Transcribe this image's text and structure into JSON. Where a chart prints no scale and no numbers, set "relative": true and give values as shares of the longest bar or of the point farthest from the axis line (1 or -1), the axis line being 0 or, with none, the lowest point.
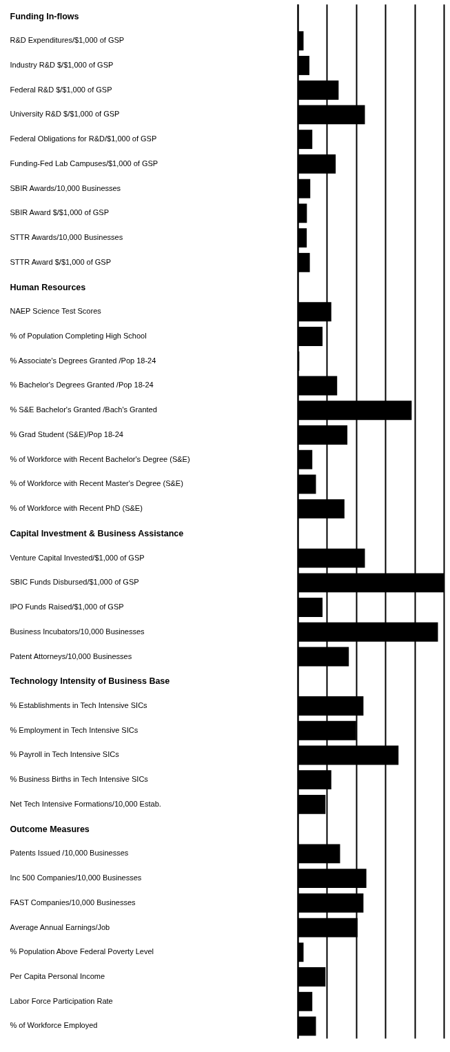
{
  "chart_data": {
    "type": "bar",
    "orientation": "horizontal",
    "relative": true,
    "grid": "x",
    "color": "#000000",
    "categories": [
      "Funding In-flows",
      "R&D Expenditures/$1,000 of GSP",
      "Industry R&D $/$1,000 of GSP",
      "Federal R&D $/$1,000 of GSP",
      "University R&D $/$1,000 of GSP",
      "Federal Obligations for R&D/$1,000 of GSP",
      "Funding-Fed Lab Campuses/$1,000 of GSP",
      "SBIR Awards/10,000 Businesses",
      "SBIR Award $/$1,000 of GSP",
      "STTR Awards/10,000 Businesses",
      "STTR Award $/$1,000 of GSP",
      "Human Resources",
      "NAEP Science Test Scores",
      "% of Population Completing High School",
      "% Associate's Degrees Granted /Pop 18-24",
      "% Bachelor's Degrees Granted /Pop 18-24",
      "% S&E Bachelor's Granted /Bach's Granted",
      "% Grad Student (S&E)/Pop 18-24",
      "% of Workforce with Recent Bachelor's Degree (S&E)",
      "% of Workforce with Recent Master's Degree (S&E)",
      "% of Workforce with Recent PhD (S&E)",
      "Capital Investment & Business Assistance",
      "Venture Capital Invested/$1,000 of GSP",
      "SBIC Funds Disbursed/$1,000 of GSP",
      "IPO Funds Raised/$1,000 of GSP",
      "Business Incubators/10,000 Businesses",
      "Patent Attorneys/10,000 Businesses",
      "Technology Intensity of Business Base",
      "% Establishments in Tech Intensive SICs",
      "% Employment in Tech Intensive SICs",
      "% Payroll in Tech Intensive SICs",
      "% Business Births in Tech Intensive SICs",
      "Net Tech Intensive Formations/10,000 Estab.",
      "Outcome Measures",
      "Patents Issued /10,000 Businesses",
      "Inc 500 Companies/10,000 Businesses",
      "FAST Companies/10,000 Businesses",
      "Average Annual Earnings/Job",
      "% Population Above Federal Poverty Level",
      "Per Capita Personal Income",
      "Labor Force Participation Rate",
      "% of Workforce Employed"
    ],
    "values": [
      null,
      0.04,
      0.08,
      0.28,
      0.46,
      0.1,
      0.26,
      0.086,
      0.063,
      0.062,
      0.083,
      null,
      0.23,
      0.17,
      0.011,
      0.27,
      0.78,
      0.34,
      0.1,
      0.125,
      0.32,
      null,
      0.46,
      1,
      0.17,
      0.96,
      0.35,
      null,
      0.45,
      0.4,
      0.69,
      0.23,
      0.19,
      null,
      0.29,
      0.47,
      0.45,
      0.41,
      0.04,
      0.19,
      0.1,
      0.125
    ]
  }
}
